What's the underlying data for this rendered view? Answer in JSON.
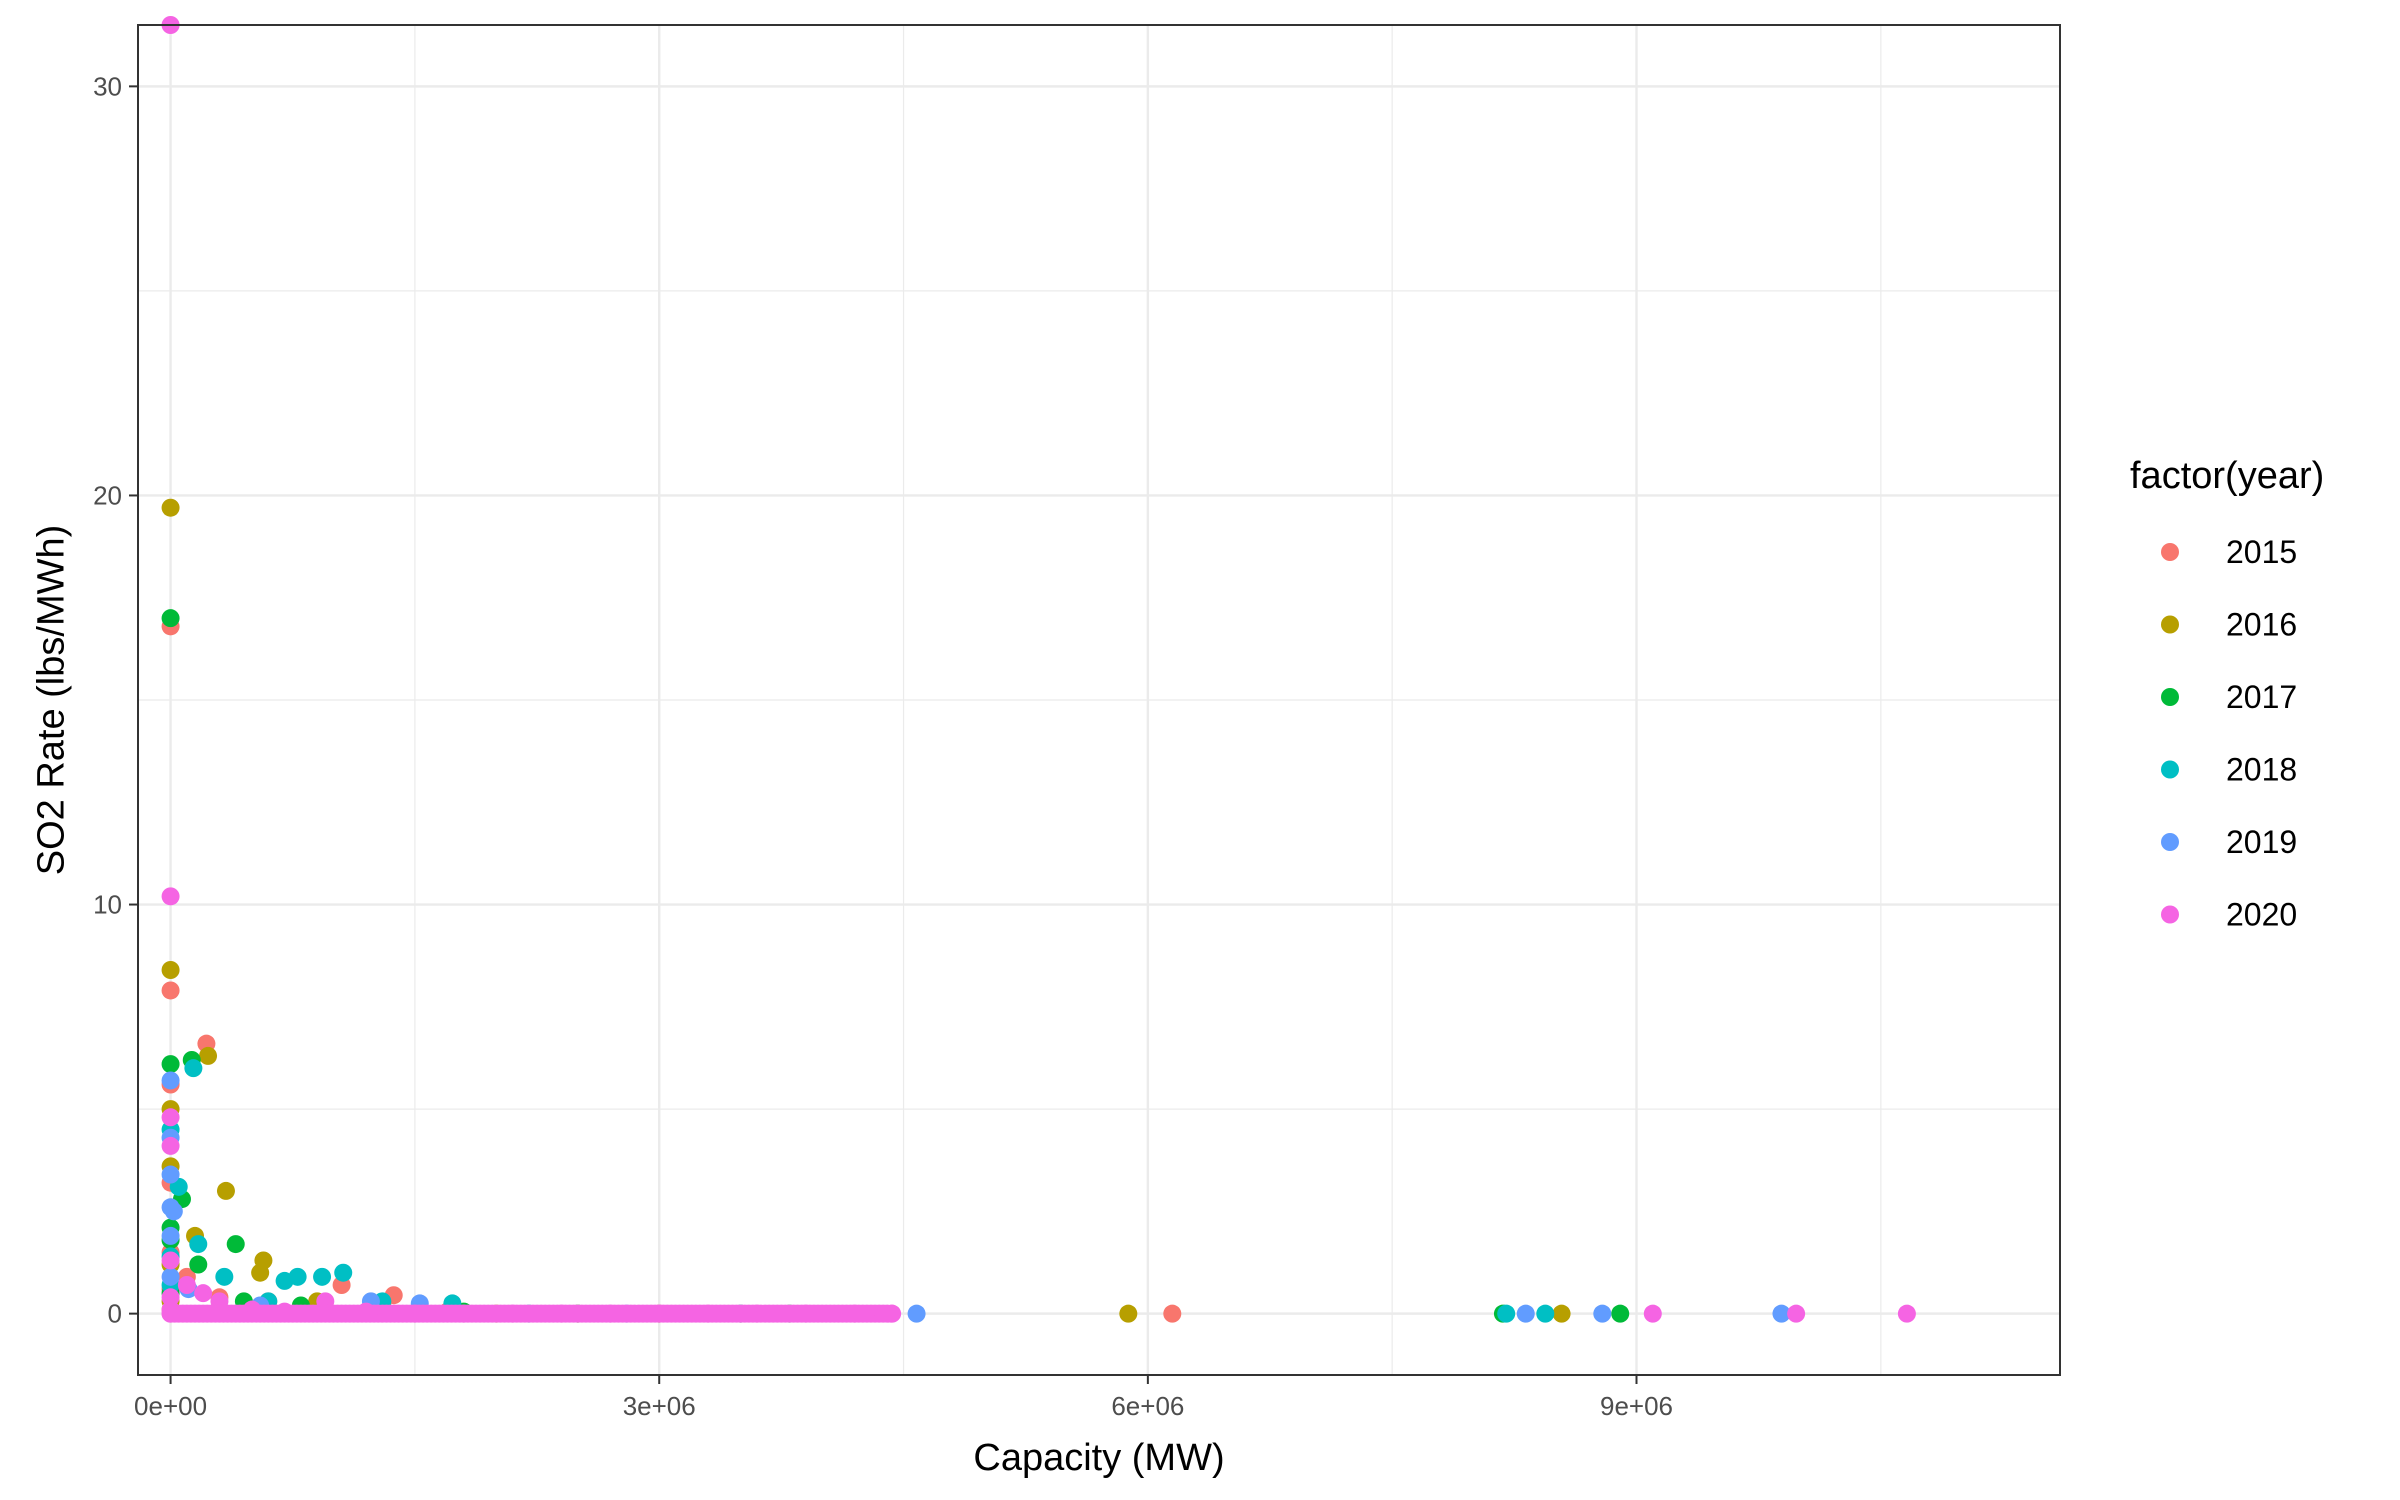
{
  "chart_data": {
    "type": "scatter",
    "title": "",
    "xlabel": "Capacity (MW)",
    "ylabel": "SO2 Rate (lbs/MWh)",
    "xlim": [
      -200000,
      11600000
    ],
    "ylim": [
      -1.5,
      31.5
    ],
    "x_ticks": [
      0,
      3000000,
      6000000,
      9000000
    ],
    "x_tick_labels": [
      "0e+00",
      "3e+06",
      "6e+06",
      "9e+06"
    ],
    "y_ticks": [
      0,
      10,
      20,
      30
    ],
    "y_tick_labels": [
      "0",
      "10",
      "20",
      "30"
    ],
    "grid": true,
    "legend": {
      "title": "factor(year)",
      "placement": "right"
    },
    "series": [
      {
        "name": "2015",
        "color": "#F8766D",
        "points": [
          [
            0,
            16.8
          ],
          [
            0,
            7.9
          ],
          [
            0,
            5.6
          ],
          [
            0,
            3.2
          ],
          [
            0,
            1.5
          ],
          [
            0,
            0.6
          ],
          [
            0,
            0.1
          ],
          [
            220000,
            6.6
          ],
          [
            100000,
            0.9
          ],
          [
            300000,
            0.4
          ],
          [
            600000,
            0.3
          ],
          [
            1050000,
            0.7
          ],
          [
            1370000,
            0.45
          ],
          [
            1700000,
            0.05
          ],
          [
            2500000,
            0
          ],
          [
            3500000,
            0
          ],
          [
            6150000,
            0
          ]
        ]
      },
      {
        "name": "2016",
        "color": "#B79F00",
        "points": [
          [
            0,
            19.7
          ],
          [
            0,
            8.4
          ],
          [
            0,
            5.0
          ],
          [
            0,
            3.6
          ],
          [
            0,
            1.2
          ],
          [
            0,
            0.3
          ],
          [
            150000,
            1.9
          ],
          [
            230000,
            6.3
          ],
          [
            340000,
            3.0
          ],
          [
            550000,
            1.0
          ],
          [
            570000,
            1.3
          ],
          [
            900000,
            0.3
          ],
          [
            1300000,
            0.2
          ],
          [
            2000000,
            0
          ],
          [
            3000000,
            0
          ],
          [
            5880000,
            0
          ],
          [
            8540000,
            0
          ]
        ]
      },
      {
        "name": "2017",
        "color": "#00BA38",
        "points": [
          [
            0,
            17.0
          ],
          [
            0,
            6.1
          ],
          [
            0,
            2.1
          ],
          [
            0,
            1.8
          ],
          [
            0,
            0.5
          ],
          [
            70000,
            2.8
          ],
          [
            130000,
            6.2
          ],
          [
            170000,
            1.2
          ],
          [
            400000,
            1.7
          ],
          [
            450000,
            0.3
          ],
          [
            800000,
            0.2
          ],
          [
            1800000,
            0.05
          ],
          [
            2500000,
            0
          ],
          [
            3800000,
            0
          ],
          [
            8180000,
            0
          ],
          [
            8900000,
            0
          ]
        ]
      },
      {
        "name": "2018",
        "color": "#00BFC4",
        "points": [
          [
            0,
            4.5
          ],
          [
            0,
            1.4
          ],
          [
            0,
            0.7
          ],
          [
            50000,
            3.1
          ],
          [
            140000,
            6.0
          ],
          [
            170000,
            1.7
          ],
          [
            330000,
            0.9
          ],
          [
            600000,
            0.3
          ],
          [
            700000,
            0.8
          ],
          [
            780000,
            0.9
          ],
          [
            930000,
            0.9
          ],
          [
            1060000,
            1.0
          ],
          [
            1300000,
            0.3
          ],
          [
            1730000,
            0.25
          ],
          [
            2200000,
            0
          ],
          [
            3500000,
            0
          ],
          [
            8200000,
            0
          ],
          [
            8440000,
            0
          ]
        ]
      },
      {
        "name": "2019",
        "color": "#619CFF",
        "points": [
          [
            0,
            5.7
          ],
          [
            0,
            4.3
          ],
          [
            0,
            3.4
          ],
          [
            0,
            2.6
          ],
          [
            0,
            1.9
          ],
          [
            20000,
            2.5
          ],
          [
            0,
            0.9
          ],
          [
            110000,
            0.6
          ],
          [
            550000,
            0.2
          ],
          [
            1230000,
            0.3
          ],
          [
            1530000,
            0.25
          ],
          [
            2800000,
            0
          ],
          [
            4580000,
            0
          ],
          [
            8320000,
            0
          ],
          [
            8790000,
            0
          ],
          [
            9890000,
            0
          ]
        ]
      },
      {
        "name": "2020",
        "color": "#F564E3",
        "points": [
          [
            0,
            31.5
          ],
          [
            0,
            10.2
          ],
          [
            0,
            4.8
          ],
          [
            0,
            4.1
          ],
          [
            0,
            1.3
          ],
          [
            0,
            0.4
          ],
          [
            0,
            0.1
          ],
          [
            0,
            0
          ],
          [
            100000,
            0.7
          ],
          [
            200000,
            0.5
          ],
          [
            300000,
            0.3
          ],
          [
            500000,
            0.1
          ],
          [
            700000,
            0.05
          ],
          [
            950000,
            0.3
          ],
          [
            1200000,
            0.05
          ],
          [
            1500000,
            0
          ],
          [
            1800000,
            0
          ],
          [
            2100000,
            0
          ],
          [
            2400000,
            0
          ],
          [
            2700000,
            0
          ],
          [
            3000000,
            0
          ],
          [
            3300000,
            0
          ],
          [
            3600000,
            0
          ],
          [
            3900000,
            0
          ],
          [
            4200000,
            0
          ],
          [
            4430000,
            0
          ],
          [
            9100000,
            0
          ],
          [
            9980000,
            0
          ],
          [
            10660000,
            0
          ]
        ]
      }
    ]
  }
}
